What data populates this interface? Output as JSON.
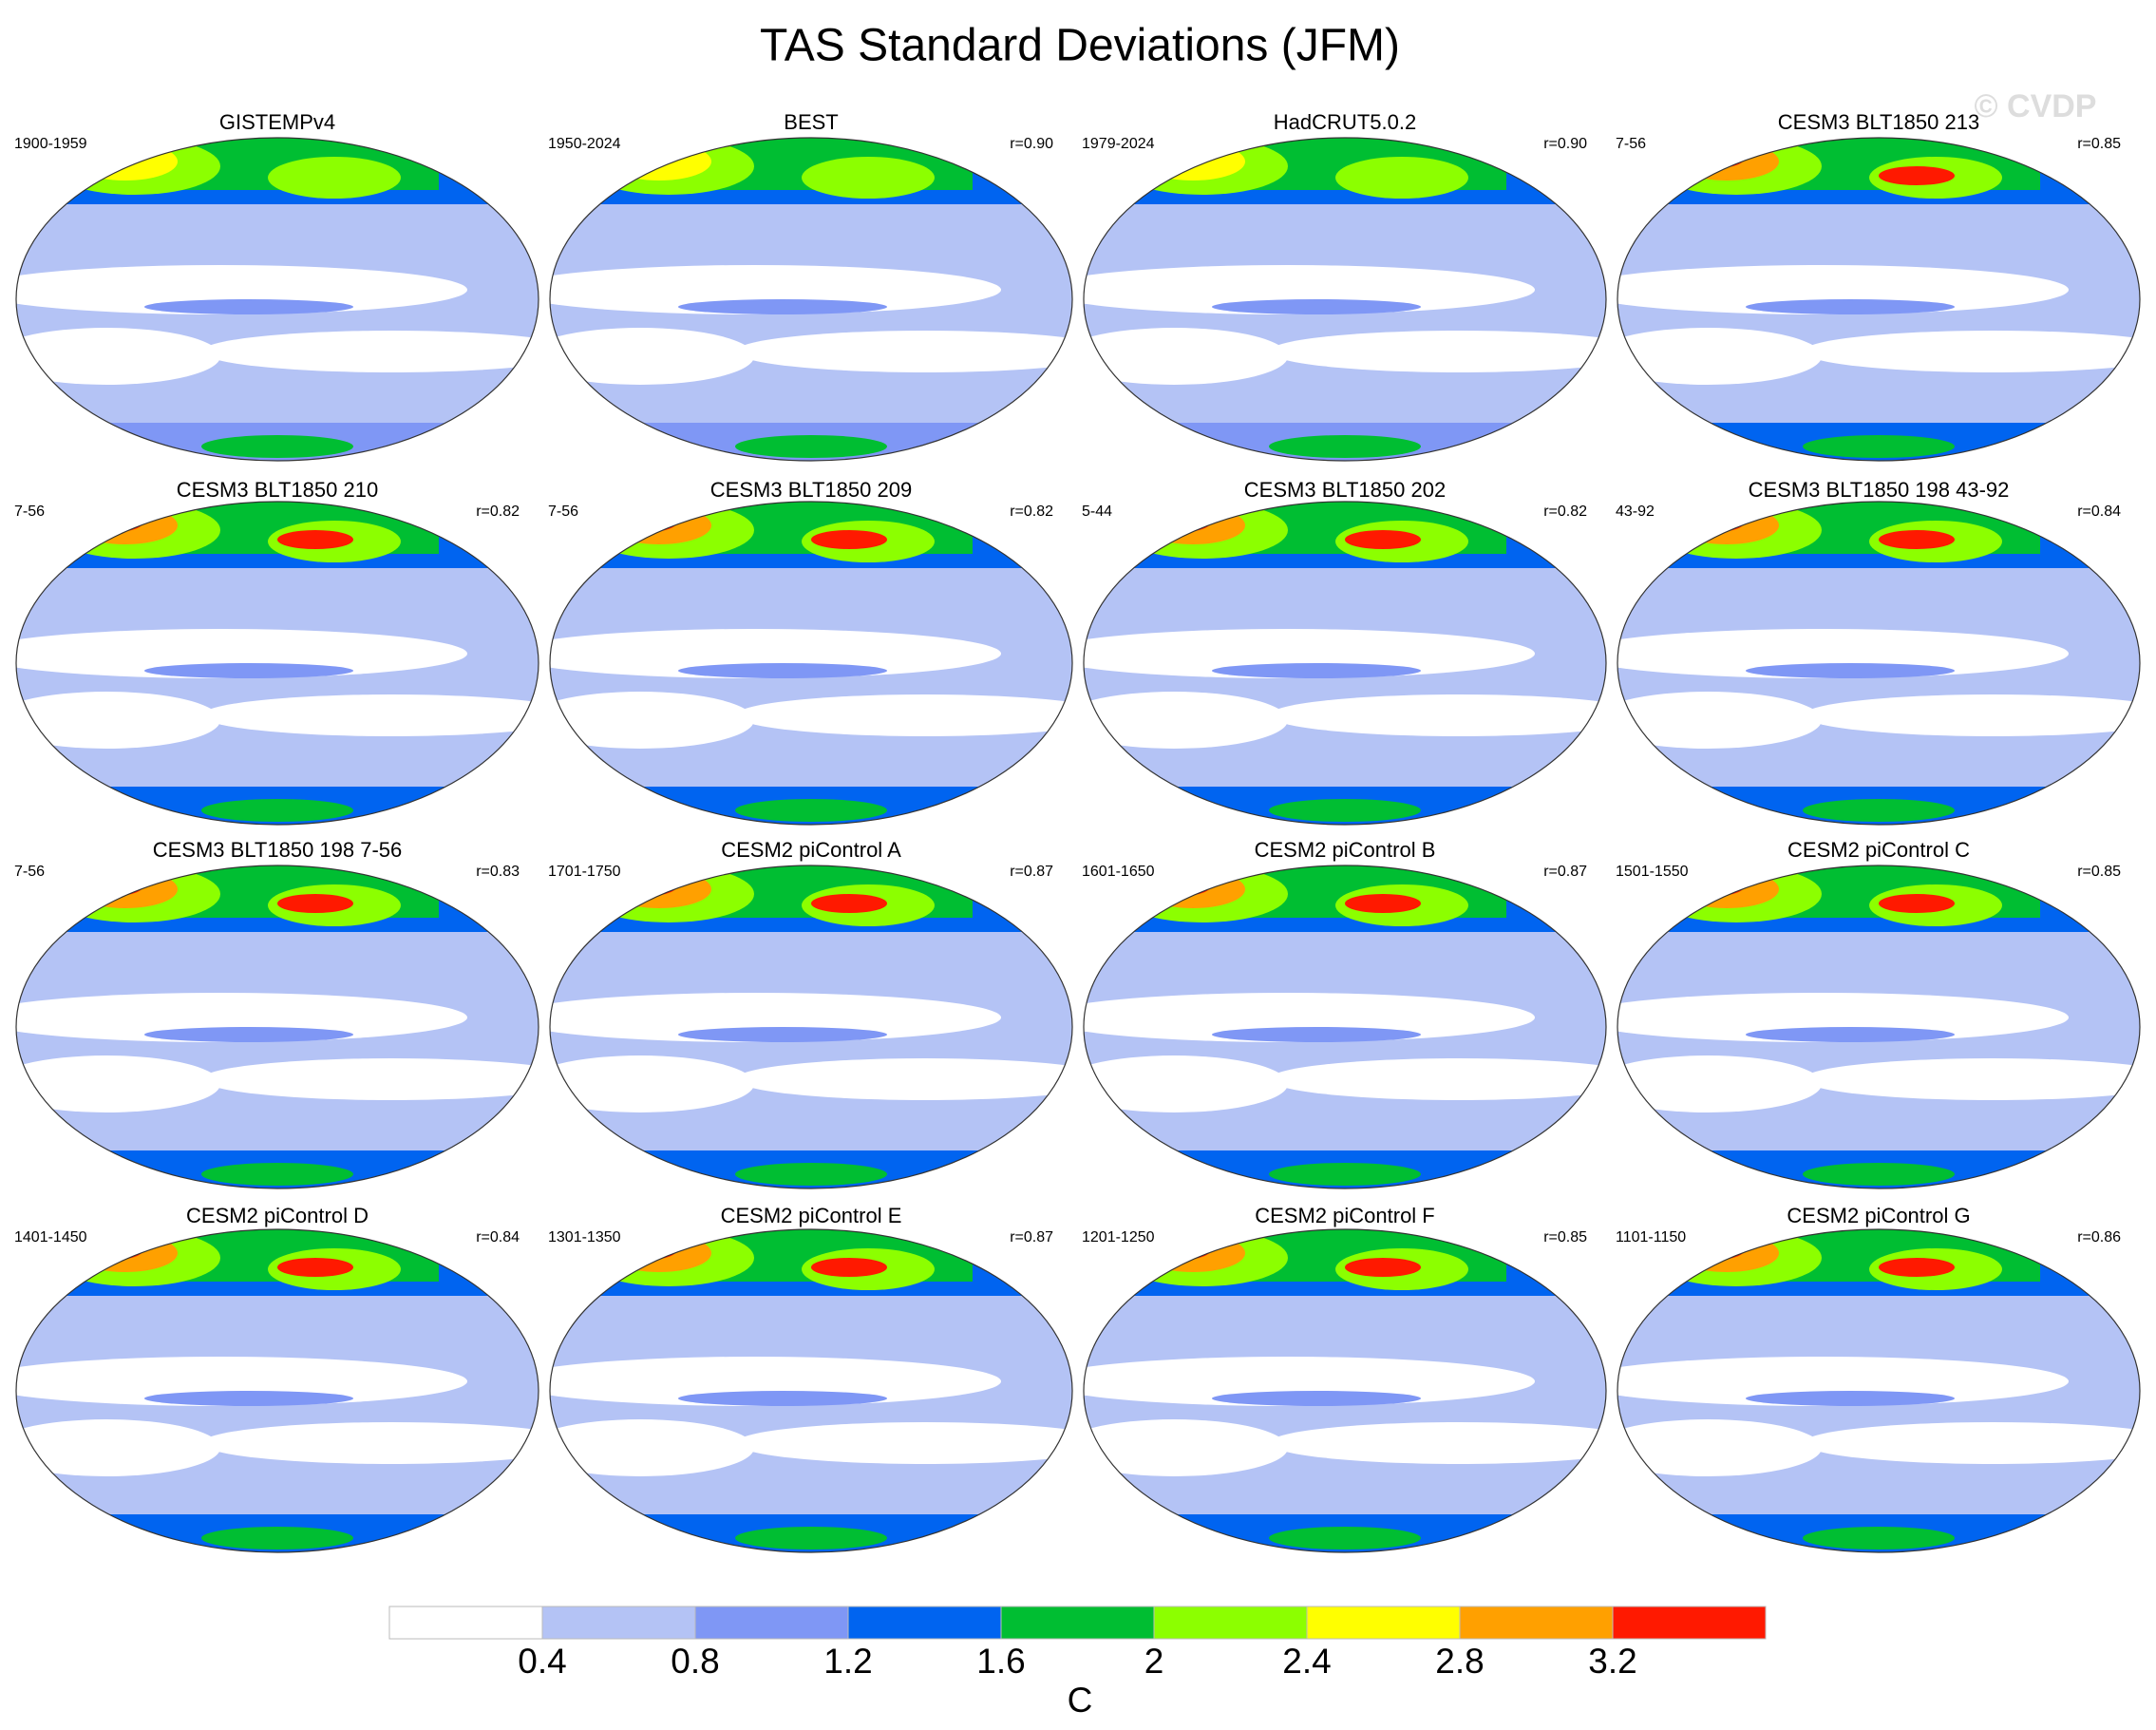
{
  "title": "TAS Standard Deviations (JFM)",
  "watermark": "© CVDP",
  "panels": [
    {
      "title": "GISTEMPv4",
      "period": "1900-1959"
    },
    {
      "title": "BEST",
      "period": "1950-2024",
      "r": "r=0.90"
    },
    {
      "title": "HadCRUT5.0.2",
      "period": "1979-2024",
      "r": "r=0.90"
    },
    {
      "title": "CESM3 BLT1850 213",
      "period": "7-56",
      "r": "r=0.85"
    },
    {
      "title": "CESM3 BLT1850 210",
      "period": "7-56",
      "r": "r=0.82"
    },
    {
      "title": "CESM3 BLT1850 209",
      "period": "7-56",
      "r": "r=0.82"
    },
    {
      "title": "CESM3 BLT1850 202",
      "period": "5-44",
      "r": "r=0.82"
    },
    {
      "title": "CESM3 BLT1850 198 43-92",
      "period": "43-92",
      "r": "r=0.84"
    },
    {
      "title": "CESM3 BLT1850 198 7-56",
      "period": "7-56",
      "r": "r=0.83"
    },
    {
      "title": "CESM2 piControl A",
      "period": "1701-1750",
      "r": "r=0.87"
    },
    {
      "title": "CESM2 piControl B",
      "period": "1601-1650",
      "r": "r=0.87"
    },
    {
      "title": "CESM2 piControl C",
      "period": "1501-1550",
      "r": "r=0.85"
    },
    {
      "title": "CESM2 piControl D",
      "period": "1401-1450",
      "r": "r=0.84"
    },
    {
      "title": "CESM2 piControl E",
      "period": "1301-1350",
      "r": "r=0.87"
    },
    {
      "title": "CESM2 piControl F",
      "period": "1201-1250",
      "r": "r=0.85"
    },
    {
      "title": "CESM2 piControl G",
      "period": "1101-1150",
      "r": "r=0.86"
    }
  ],
  "colorbar": {
    "ticks": [
      0.4,
      0.8,
      1.2,
      1.6,
      2,
      2.4,
      2.8,
      3.2
    ],
    "colors": [
      "#ffffff",
      "#b4c3f5",
      "#7f97f5",
      "#0064f0",
      "#00be32",
      "#8cff00",
      "#ffff00",
      "#ffa000",
      "#ff1900"
    ],
    "unit": "C"
  }
}
